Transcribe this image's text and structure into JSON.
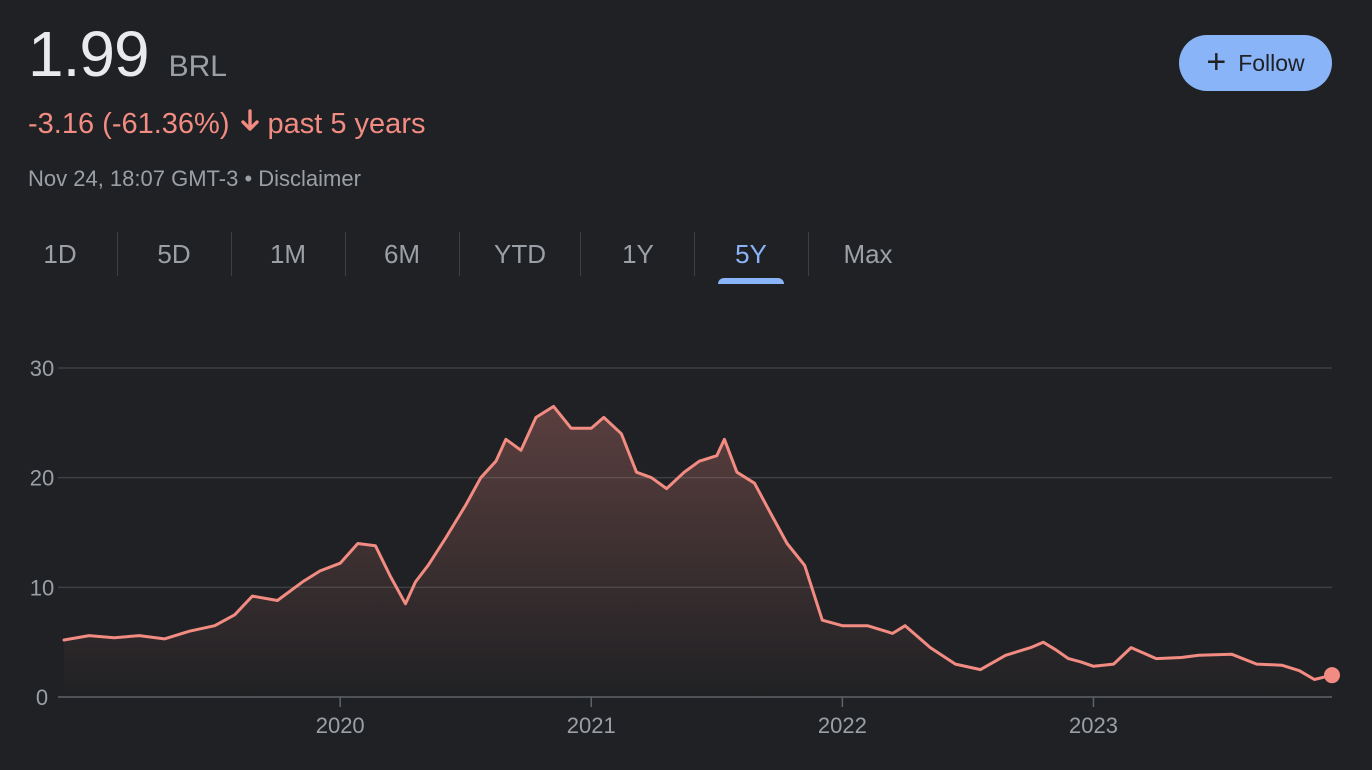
{
  "quote": {
    "price": "1.99",
    "currency": "BRL",
    "change_text": "-3.16 (-61.36%)",
    "change_arrow": "🡣",
    "period_text": "past 5 years",
    "timestamp": "Nov 24, 18:07 GMT-3",
    "separator": " • ",
    "disclaimer": "Disclaimer"
  },
  "follow_button": {
    "label": "Follow",
    "icon": "plus-icon",
    "plus": "+"
  },
  "tabs": [
    {
      "label": "1D"
    },
    {
      "label": "5D"
    },
    {
      "label": "1M"
    },
    {
      "label": "6M"
    },
    {
      "label": "YTD"
    },
    {
      "label": "1Y"
    },
    {
      "label": "5Y",
      "active": true
    },
    {
      "label": "Max"
    }
  ],
  "colors": {
    "background": "#202124",
    "line": "#f28b82",
    "accent": "#8ab4f8",
    "grid": "#3c4043",
    "axis_text": "#9aa0a6"
  },
  "chart_data": {
    "type": "area",
    "x_tick_labels": [
      "2020",
      "2021",
      "2022",
      "2023"
    ],
    "y_tick_labels": [
      "0",
      "10",
      "20",
      "30"
    ],
    "ylim": [
      0,
      30
    ],
    "xlim": [
      2018.9,
      2023.95
    ],
    "x_ticks": [
      2020,
      2021,
      2022,
      2023
    ],
    "y_ticks": [
      0,
      10,
      20,
      30
    ],
    "grid": true,
    "series": [
      {
        "x": [
          2018.9,
          2019.0,
          2019.1,
          2019.2,
          2019.3,
          2019.4,
          2019.5,
          2019.58,
          2019.65,
          2019.75,
          2019.85,
          2019.92,
          2020.0,
          2020.07,
          2020.14,
          2020.2,
          2020.26,
          2020.3,
          2020.35,
          2020.42,
          2020.5,
          2020.56,
          2020.62,
          2020.66,
          2020.72,
          2020.78,
          2020.85,
          2020.92,
          2021.0,
          2021.05,
          2021.12,
          2021.18,
          2021.24,
          2021.3,
          2021.37,
          2021.43,
          2021.5,
          2021.53,
          2021.58,
          2021.65,
          2021.72,
          2021.78,
          2021.85,
          2021.92,
          2022.0,
          2022.1,
          2022.2,
          2022.25,
          2022.35,
          2022.45,
          2022.55,
          2022.65,
          2022.75,
          2022.8,
          2022.85,
          2022.9,
          2022.95,
          2023.0,
          2023.08,
          2023.15,
          2023.25,
          2023.35,
          2023.42,
          2023.55,
          2023.65,
          2023.75,
          2023.82,
          2023.88,
          2023.95
        ],
        "y": [
          5.2,
          5.6,
          5.4,
          5.6,
          5.3,
          6.0,
          6.5,
          7.5,
          9.2,
          8.8,
          10.5,
          11.5,
          12.2,
          14.0,
          13.8,
          11.0,
          8.5,
          10.5,
          12.0,
          14.5,
          17.5,
          20.0,
          21.5,
          23.5,
          22.5,
          25.5,
          26.5,
          24.5,
          24.5,
          25.5,
          24.0,
          20.5,
          20.0,
          19.0,
          20.5,
          21.5,
          22.0,
          23.5,
          20.5,
          19.5,
          16.5,
          14.0,
          12.0,
          7.0,
          6.5,
          6.5,
          5.8,
          6.5,
          4.5,
          3.0,
          2.5,
          3.8,
          4.5,
          5.0,
          4.3,
          3.5,
          3.2,
          2.8,
          3.0,
          4.5,
          3.5,
          3.6,
          3.8,
          3.9,
          3.0,
          2.9,
          2.4,
          1.6,
          1.99
        ]
      }
    ]
  }
}
